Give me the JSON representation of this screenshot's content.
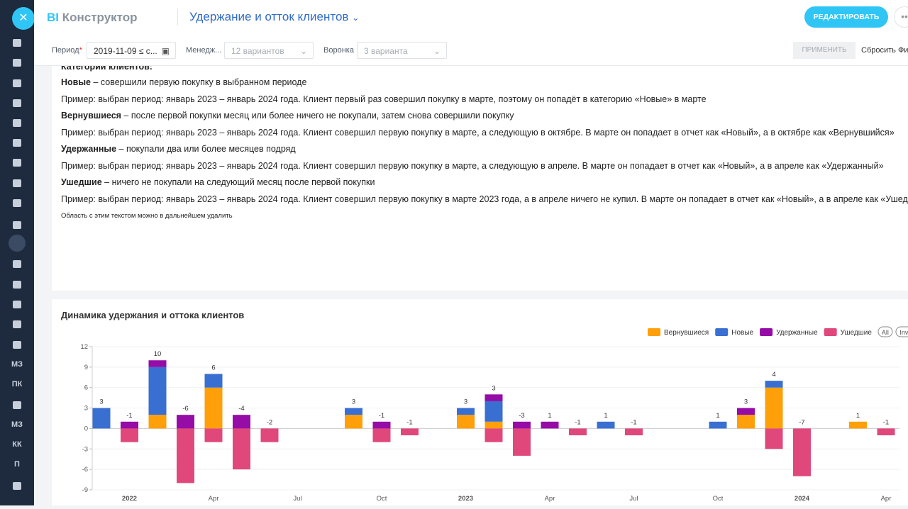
{
  "header": {
    "logo_bi": "BI",
    "logo_rest": "Конструктор",
    "title": "Удержание и отток клиентов",
    "edit_button": "РЕДАКТИРОВАТЬ"
  },
  "sidebar": {
    "items": [
      "МЗ",
      "ПК",
      "МЗ",
      "КК",
      "П"
    ]
  },
  "filters": {
    "period_label": "Период",
    "required_mark": "*",
    "period_value": "2019-11-09 ≤ с...",
    "manager_label": "Менедж...",
    "manager_value": "12 вариантов",
    "funnel_label": "Воронка",
    "funnel_value": "3 варианта",
    "apply": "ПРИМЕНИТЬ",
    "reset": "Сбросить Фил"
  },
  "notes": {
    "heading": "Категории клиентов:",
    "lines": [
      {
        "bold": "Новые",
        "text": " – совершили первую покупку в выбранном периоде"
      },
      {
        "text": "Пример: выбран период: январь 2023 – январь 2024 года. Клиент первый раз совершил покупку в марте, поэтому он попадёт в категорию «Новые» в марте"
      },
      {
        "bold": "Вернувшиеся",
        "text": " – после первой покупки месяц или более ничего не покупали, затем снова совершили покупку"
      },
      {
        "text": "Пример: выбран период: январь 2023 – январь 2024 года. Клиент совершил первую покупку в марте, а следующую в октябре. В марте он попадает в отчет как «Новый», а в октябре как «Вернувшийся»"
      },
      {
        "bold": "Удержанные",
        "text": " – покупали два или более месяцев подряд"
      },
      {
        "text": "Пример: выбран период: январь 2023 – январь 2024 года. Клиент совершил первую покупку в марте, а следующую в апреле. В марте он попадает в отчет как «Новый», а в апреле как «Удержанный»"
      },
      {
        "bold": "Ушедшие",
        "text": " – ничего не покупали на следующий месяц после первой покупки"
      },
      {
        "text": "Пример: выбран период: январь 2023 – январь 2024 года. Клиент совершил первую покупку в марте 2023 года, а в апреле ничего не купил. В марте он попадает в отчет как «Новый», а в апреле как «Ушедший»"
      }
    ],
    "footnote": "Область с этим текстом можно в дальнейшем удалить"
  },
  "chart_data": {
    "type": "bar",
    "stacked": true,
    "title": "Динамика удержания и оттока клиентов",
    "categories": [
      null,
      "2022",
      null,
      null,
      "Apr",
      null,
      null,
      "Jul",
      null,
      null,
      "Oct",
      null,
      null,
      "2023",
      null,
      null,
      "Apr",
      null,
      null,
      "Jul",
      null,
      null,
      "Oct",
      null,
      null,
      "2024",
      null,
      null,
      "Apr"
    ],
    "series": [
      {
        "name": "Вернувшиеся",
        "color": "#ff9f0a",
        "values": [
          null,
          null,
          2,
          null,
          6,
          null,
          null,
          null,
          null,
          2,
          null,
          null,
          null,
          2,
          1,
          null,
          null,
          null,
          null,
          null,
          null,
          null,
          null,
          2,
          6,
          null,
          null,
          1,
          null
        ]
      },
      {
        "name": "Новые",
        "color": "#3a6fd2",
        "values": [
          3,
          null,
          7,
          null,
          2,
          null,
          null,
          null,
          null,
          1,
          null,
          null,
          null,
          1,
          3,
          null,
          null,
          null,
          1,
          null,
          null,
          null,
          1,
          null,
          1,
          null,
          null,
          null,
          null
        ]
      },
      {
        "name": "Удержанные",
        "color": "#950ca6",
        "values": [
          null,
          1,
          1,
          2,
          null,
          2,
          null,
          null,
          null,
          null,
          1,
          null,
          null,
          null,
          1,
          1,
          1,
          null,
          null,
          null,
          null,
          null,
          null,
          1,
          null,
          null,
          null,
          null,
          null
        ]
      },
      {
        "name": "Ушедшие",
        "color": "#e0487c",
        "values": [
          null,
          -2,
          null,
          -8,
          -2,
          -6,
          -2,
          null,
          null,
          null,
          -2,
          -1,
          null,
          null,
          -2,
          -4,
          null,
          -1,
          null,
          -1,
          null,
          null,
          null,
          null,
          -3,
          -7,
          null,
          null,
          -1
        ]
      }
    ],
    "totals": [
      3,
      -1,
      10,
      -6,
      6,
      -4,
      -2,
      null,
      null,
      3,
      -1,
      -1,
      null,
      3,
      3,
      -3,
      1,
      -1,
      1,
      -1,
      null,
      null,
      1,
      3,
      4,
      -7,
      null,
      1,
      -1
    ],
    "ylim": [
      -9,
      12
    ],
    "yticks": [
      -9,
      -6,
      -3,
      0,
      3,
      6,
      9,
      12
    ],
    "grid": true,
    "legend": "top-right",
    "legend_controls": [
      "All",
      "Inv"
    ]
  }
}
